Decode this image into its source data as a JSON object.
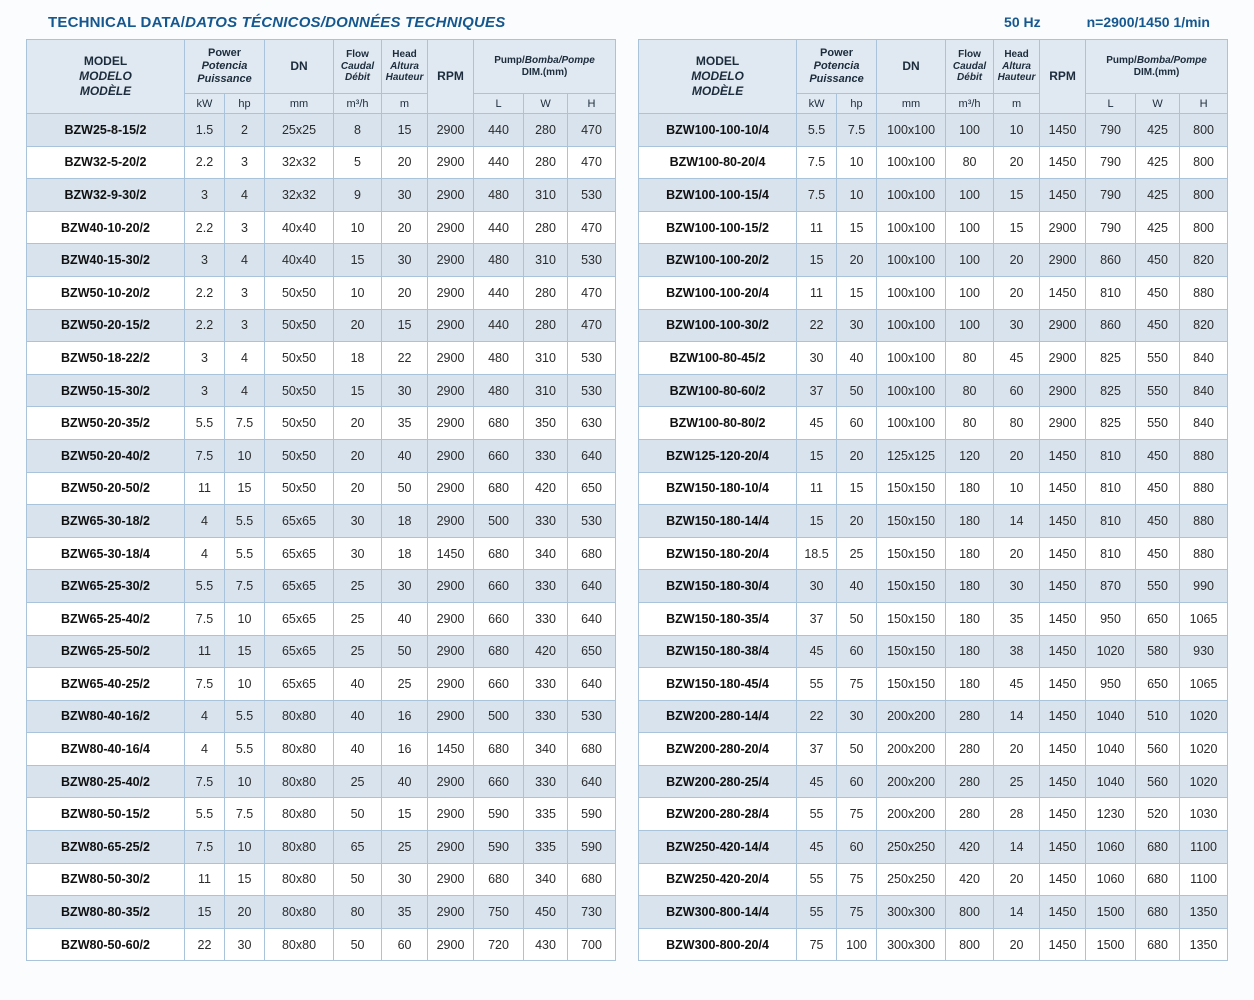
{
  "topbar": {
    "title_en": "TECHNICAL DATA/",
    "title_i18n": "DATOS TÉCNICOS/DONNÉES TECHNIQUES",
    "frequency": "50 Hz",
    "speed": "n=2900/1450 1/min"
  },
  "headers": {
    "model": [
      "MODEL",
      "MODELO",
      "MODÈLE"
    ],
    "power": [
      "Power",
      "Potencia",
      "Puissance"
    ],
    "dn": "DN",
    "flow": [
      "Flow",
      "Caudal",
      "Débit"
    ],
    "head": [
      "Head",
      "Altura",
      "Hauteur"
    ],
    "rpm": "RPM",
    "dim_en": "Pump/",
    "dim_i18n": "Bomba/Pompe",
    "dim_line2": "DIM.(mm)",
    "units": [
      "kW",
      "hp",
      "mm",
      "m³/h",
      "m",
      "L",
      "W",
      "H"
    ]
  },
  "tables": {
    "left": {
      "rows": [
        [
          "BZW25-8-15/2",
          "1.5",
          "2",
          "25x25",
          "8",
          "15",
          "2900",
          "440",
          "280",
          "470"
        ],
        [
          "BZW32-5-20/2",
          "2.2",
          "3",
          "32x32",
          "5",
          "20",
          "2900",
          "440",
          "280",
          "470"
        ],
        [
          "BZW32-9-30/2",
          "3",
          "4",
          "32x32",
          "9",
          "30",
          "2900",
          "480",
          "310",
          "530"
        ],
        [
          "BZW40-10-20/2",
          "2.2",
          "3",
          "40x40",
          "10",
          "20",
          "2900",
          "440",
          "280",
          "470"
        ],
        [
          "BZW40-15-30/2",
          "3",
          "4",
          "40x40",
          "15",
          "30",
          "2900",
          "480",
          "310",
          "530"
        ],
        [
          "BZW50-10-20/2",
          "2.2",
          "3",
          "50x50",
          "10",
          "20",
          "2900",
          "440",
          "280",
          "470"
        ],
        [
          "BZW50-20-15/2",
          "2.2",
          "3",
          "50x50",
          "20",
          "15",
          "2900",
          "440",
          "280",
          "470"
        ],
        [
          "BZW50-18-22/2",
          "3",
          "4",
          "50x50",
          "18",
          "22",
          "2900",
          "480",
          "310",
          "530"
        ],
        [
          "BZW50-15-30/2",
          "3",
          "4",
          "50x50",
          "15",
          "30",
          "2900",
          "480",
          "310",
          "530"
        ],
        [
          "BZW50-20-35/2",
          "5.5",
          "7.5",
          "50x50",
          "20",
          "35",
          "2900",
          "680",
          "350",
          "630"
        ],
        [
          "BZW50-20-40/2",
          "7.5",
          "10",
          "50x50",
          "20",
          "40",
          "2900",
          "660",
          "330",
          "640"
        ],
        [
          "BZW50-20-50/2",
          "11",
          "15",
          "50x50",
          "20",
          "50",
          "2900",
          "680",
          "420",
          "650"
        ],
        [
          "BZW65-30-18/2",
          "4",
          "5.5",
          "65x65",
          "30",
          "18",
          "2900",
          "500",
          "330",
          "530"
        ],
        [
          "BZW65-30-18/4",
          "4",
          "5.5",
          "65x65",
          "30",
          "18",
          "1450",
          "680",
          "340",
          "680"
        ],
        [
          "BZW65-25-30/2",
          "5.5",
          "7.5",
          "65x65",
          "25",
          "30",
          "2900",
          "660",
          "330",
          "640"
        ],
        [
          "BZW65-25-40/2",
          "7.5",
          "10",
          "65x65",
          "25",
          "40",
          "2900",
          "660",
          "330",
          "640"
        ],
        [
          "BZW65-25-50/2",
          "11",
          "15",
          "65x65",
          "25",
          "50",
          "2900",
          "680",
          "420",
          "650"
        ],
        [
          "BZW65-40-25/2",
          "7.5",
          "10",
          "65x65",
          "40",
          "25",
          "2900",
          "660",
          "330",
          "640"
        ],
        [
          "BZW80-40-16/2",
          "4",
          "5.5",
          "80x80",
          "40",
          "16",
          "2900",
          "500",
          "330",
          "530"
        ],
        [
          "BZW80-40-16/4",
          "4",
          "5.5",
          "80x80",
          "40",
          "16",
          "1450",
          "680",
          "340",
          "680"
        ],
        [
          "BZW80-25-40/2",
          "7.5",
          "10",
          "80x80",
          "25",
          "40",
          "2900",
          "660",
          "330",
          "640"
        ],
        [
          "BZW80-50-15/2",
          "5.5",
          "7.5",
          "80x80",
          "50",
          "15",
          "2900",
          "590",
          "335",
          "590"
        ],
        [
          "BZW80-65-25/2",
          "7.5",
          "10",
          "80x80",
          "65",
          "25",
          "2900",
          "590",
          "335",
          "590"
        ],
        [
          "BZW80-50-30/2",
          "11",
          "15",
          "80x80",
          "50",
          "30",
          "2900",
          "680",
          "340",
          "680"
        ],
        [
          "BZW80-80-35/2",
          "15",
          "20",
          "80x80",
          "80",
          "35",
          "2900",
          "750",
          "450",
          "730"
        ],
        [
          "BZW80-50-60/2",
          "22",
          "30",
          "80x80",
          "50",
          "60",
          "2900",
          "720",
          "430",
          "700"
        ]
      ]
    },
    "right": {
      "rows": [
        [
          "BZW100-100-10/4",
          "5.5",
          "7.5",
          "100x100",
          "100",
          "10",
          "1450",
          "790",
          "425",
          "800"
        ],
        [
          "BZW100-80-20/4",
          "7.5",
          "10",
          "100x100",
          "80",
          "20",
          "1450",
          "790",
          "425",
          "800"
        ],
        [
          "BZW100-100-15/4",
          "7.5",
          "10",
          "100x100",
          "100",
          "15",
          "1450",
          "790",
          "425",
          "800"
        ],
        [
          "BZW100-100-15/2",
          "11",
          "15",
          "100x100",
          "100",
          "15",
          "2900",
          "790",
          "425",
          "800"
        ],
        [
          "BZW100-100-20/2",
          "15",
          "20",
          "100x100",
          "100",
          "20",
          "2900",
          "860",
          "450",
          "820"
        ],
        [
          "BZW100-100-20/4",
          "11",
          "15",
          "100x100",
          "100",
          "20",
          "1450",
          "810",
          "450",
          "880"
        ],
        [
          "BZW100-100-30/2",
          "22",
          "30",
          "100x100",
          "100",
          "30",
          "2900",
          "860",
          "450",
          "820"
        ],
        [
          "BZW100-80-45/2",
          "30",
          "40",
          "100x100",
          "80",
          "45",
          "2900",
          "825",
          "550",
          "840"
        ],
        [
          "BZW100-80-60/2",
          "37",
          "50",
          "100x100",
          "80",
          "60",
          "2900",
          "825",
          "550",
          "840"
        ],
        [
          "BZW100-80-80/2",
          "45",
          "60",
          "100x100",
          "80",
          "80",
          "2900",
          "825",
          "550",
          "840"
        ],
        [
          "BZW125-120-20/4",
          "15",
          "20",
          "125x125",
          "120",
          "20",
          "1450",
          "810",
          "450",
          "880"
        ],
        [
          "BZW150-180-10/4",
          "11",
          "15",
          "150x150",
          "180",
          "10",
          "1450",
          "810",
          "450",
          "880"
        ],
        [
          "BZW150-180-14/4",
          "15",
          "20",
          "150x150",
          "180",
          "14",
          "1450",
          "810",
          "450",
          "880"
        ],
        [
          "BZW150-180-20/4",
          "18.5",
          "25",
          "150x150",
          "180",
          "20",
          "1450",
          "810",
          "450",
          "880"
        ],
        [
          "BZW150-180-30/4",
          "30",
          "40",
          "150x150",
          "180",
          "30",
          "1450",
          "870",
          "550",
          "990"
        ],
        [
          "BZW150-180-35/4",
          "37",
          "50",
          "150x150",
          "180",
          "35",
          "1450",
          "950",
          "650",
          "1065"
        ],
        [
          "BZW150-180-38/4",
          "45",
          "60",
          "150x150",
          "180",
          "38",
          "1450",
          "1020",
          "580",
          "930"
        ],
        [
          "BZW150-180-45/4",
          "55",
          "75",
          "150x150",
          "180",
          "45",
          "1450",
          "950",
          "650",
          "1065"
        ],
        [
          "BZW200-280-14/4",
          "22",
          "30",
          "200x200",
          "280",
          "14",
          "1450",
          "1040",
          "510",
          "1020"
        ],
        [
          "BZW200-280-20/4",
          "37",
          "50",
          "200x200",
          "280",
          "20",
          "1450",
          "1040",
          "560",
          "1020"
        ],
        [
          "BZW200-280-25/4",
          "45",
          "60",
          "200x200",
          "280",
          "25",
          "1450",
          "1040",
          "560",
          "1020"
        ],
        [
          "BZW200-280-28/4",
          "55",
          "75",
          "200x200",
          "280",
          "28",
          "1450",
          "1230",
          "520",
          "1030"
        ],
        [
          "BZW250-420-14/4",
          "45",
          "60",
          "250x250",
          "420",
          "14",
          "1450",
          "1060",
          "680",
          "1100"
        ],
        [
          "BZW250-420-20/4",
          "55",
          "75",
          "250x250",
          "420",
          "20",
          "1450",
          "1060",
          "680",
          "1100"
        ],
        [
          "BZW300-800-14/4",
          "55",
          "75",
          "300x300",
          "800",
          "14",
          "1450",
          "1500",
          "680",
          "1350"
        ],
        [
          "BZW300-800-20/4",
          "75",
          "100",
          "300x300",
          "800",
          "20",
          "1450",
          "1500",
          "680",
          "1350"
        ]
      ]
    }
  }
}
